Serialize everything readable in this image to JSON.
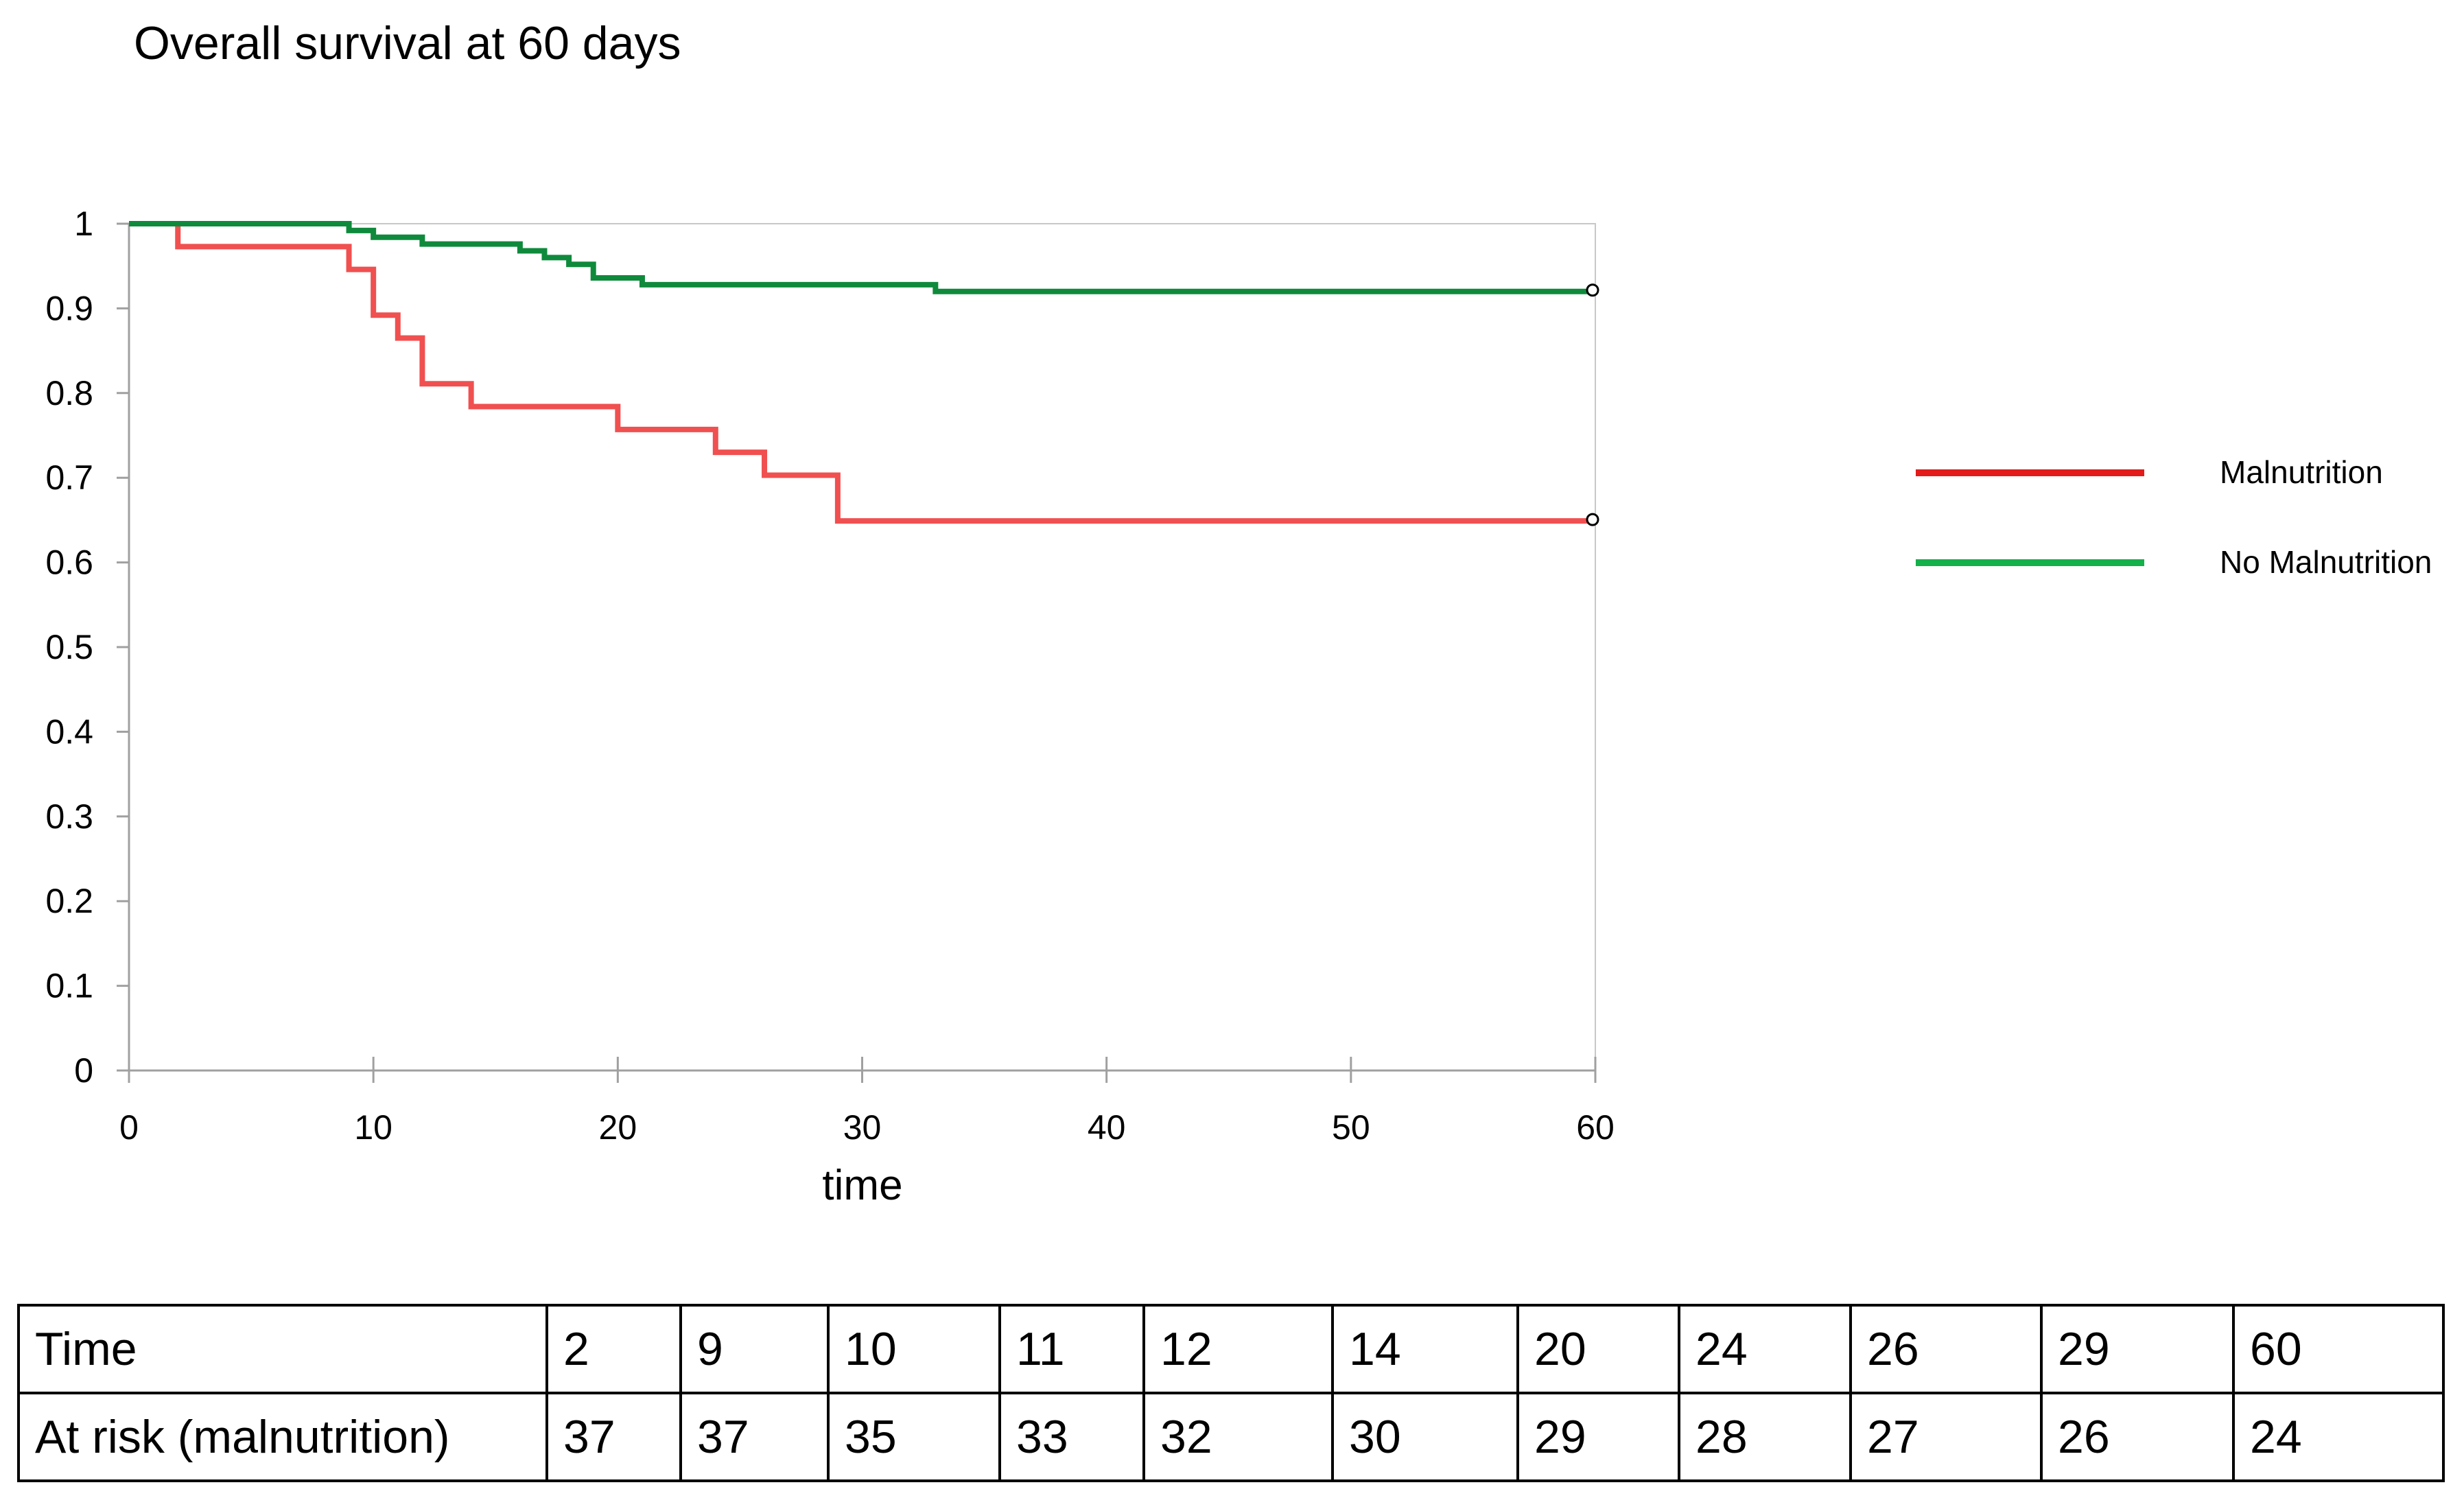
{
  "title": "Overall survival at 60 days",
  "colors": {
    "malnutrition": "#f05050",
    "no_malnutrition": "#0f8a3c",
    "legend_malnutrition": "#e31b1b",
    "legend_no_malnutrition": "#14b04a",
    "axis": "#a0a0a0"
  },
  "chart_data": {
    "type": "line",
    "step": true,
    "title": "Overall survival at 60 days",
    "xlabel": "time",
    "ylabel": "",
    "xlim": [
      0,
      60
    ],
    "ylim": [
      0,
      1
    ],
    "xticks": [
      "0",
      "10",
      "20",
      "30",
      "40",
      "50",
      "60"
    ],
    "yticks": [
      "0",
      "0.1",
      "0.2",
      "0.3",
      "0.4",
      "0.5",
      "0.6",
      "0.7",
      "0.8",
      "0.9",
      "1"
    ],
    "grid": false,
    "legend_position": "right",
    "series": [
      {
        "name": "Malnutrition",
        "color": "#f05050",
        "censored_end": true,
        "points": [
          [
            0,
            1.0
          ],
          [
            2,
            0.973
          ],
          [
            9,
            0.946
          ],
          [
            10,
            0.892
          ],
          [
            11,
            0.865
          ],
          [
            12,
            0.811
          ],
          [
            14,
            0.784
          ],
          [
            20,
            0.757
          ],
          [
            24,
            0.73
          ],
          [
            26,
            0.703
          ],
          [
            29,
            0.649
          ],
          [
            60,
            0.649
          ]
        ]
      },
      {
        "name": "No Malnutrition",
        "color": "#0f8a3c",
        "censored_end": true,
        "points": [
          [
            0,
            1.0
          ],
          [
            9,
            0.992
          ],
          [
            10,
            0.984
          ],
          [
            12,
            0.976
          ],
          [
            16,
            0.968
          ],
          [
            17,
            0.96
          ],
          [
            18,
            0.952
          ],
          [
            19,
            0.936
          ],
          [
            21,
            0.928
          ],
          [
            33,
            0.92
          ],
          [
            60,
            0.92
          ]
        ]
      }
    ]
  },
  "table": {
    "header": "Time",
    "times": [
      "2",
      "9",
      "10",
      "11",
      "12",
      "14",
      "20",
      "24",
      "26",
      "29",
      "60"
    ],
    "row_label": "At risk (malnutrition)",
    "at_risk": [
      "37",
      "37",
      "35",
      "33",
      "32",
      "30",
      "29",
      "28",
      "27",
      "26",
      "24"
    ]
  }
}
